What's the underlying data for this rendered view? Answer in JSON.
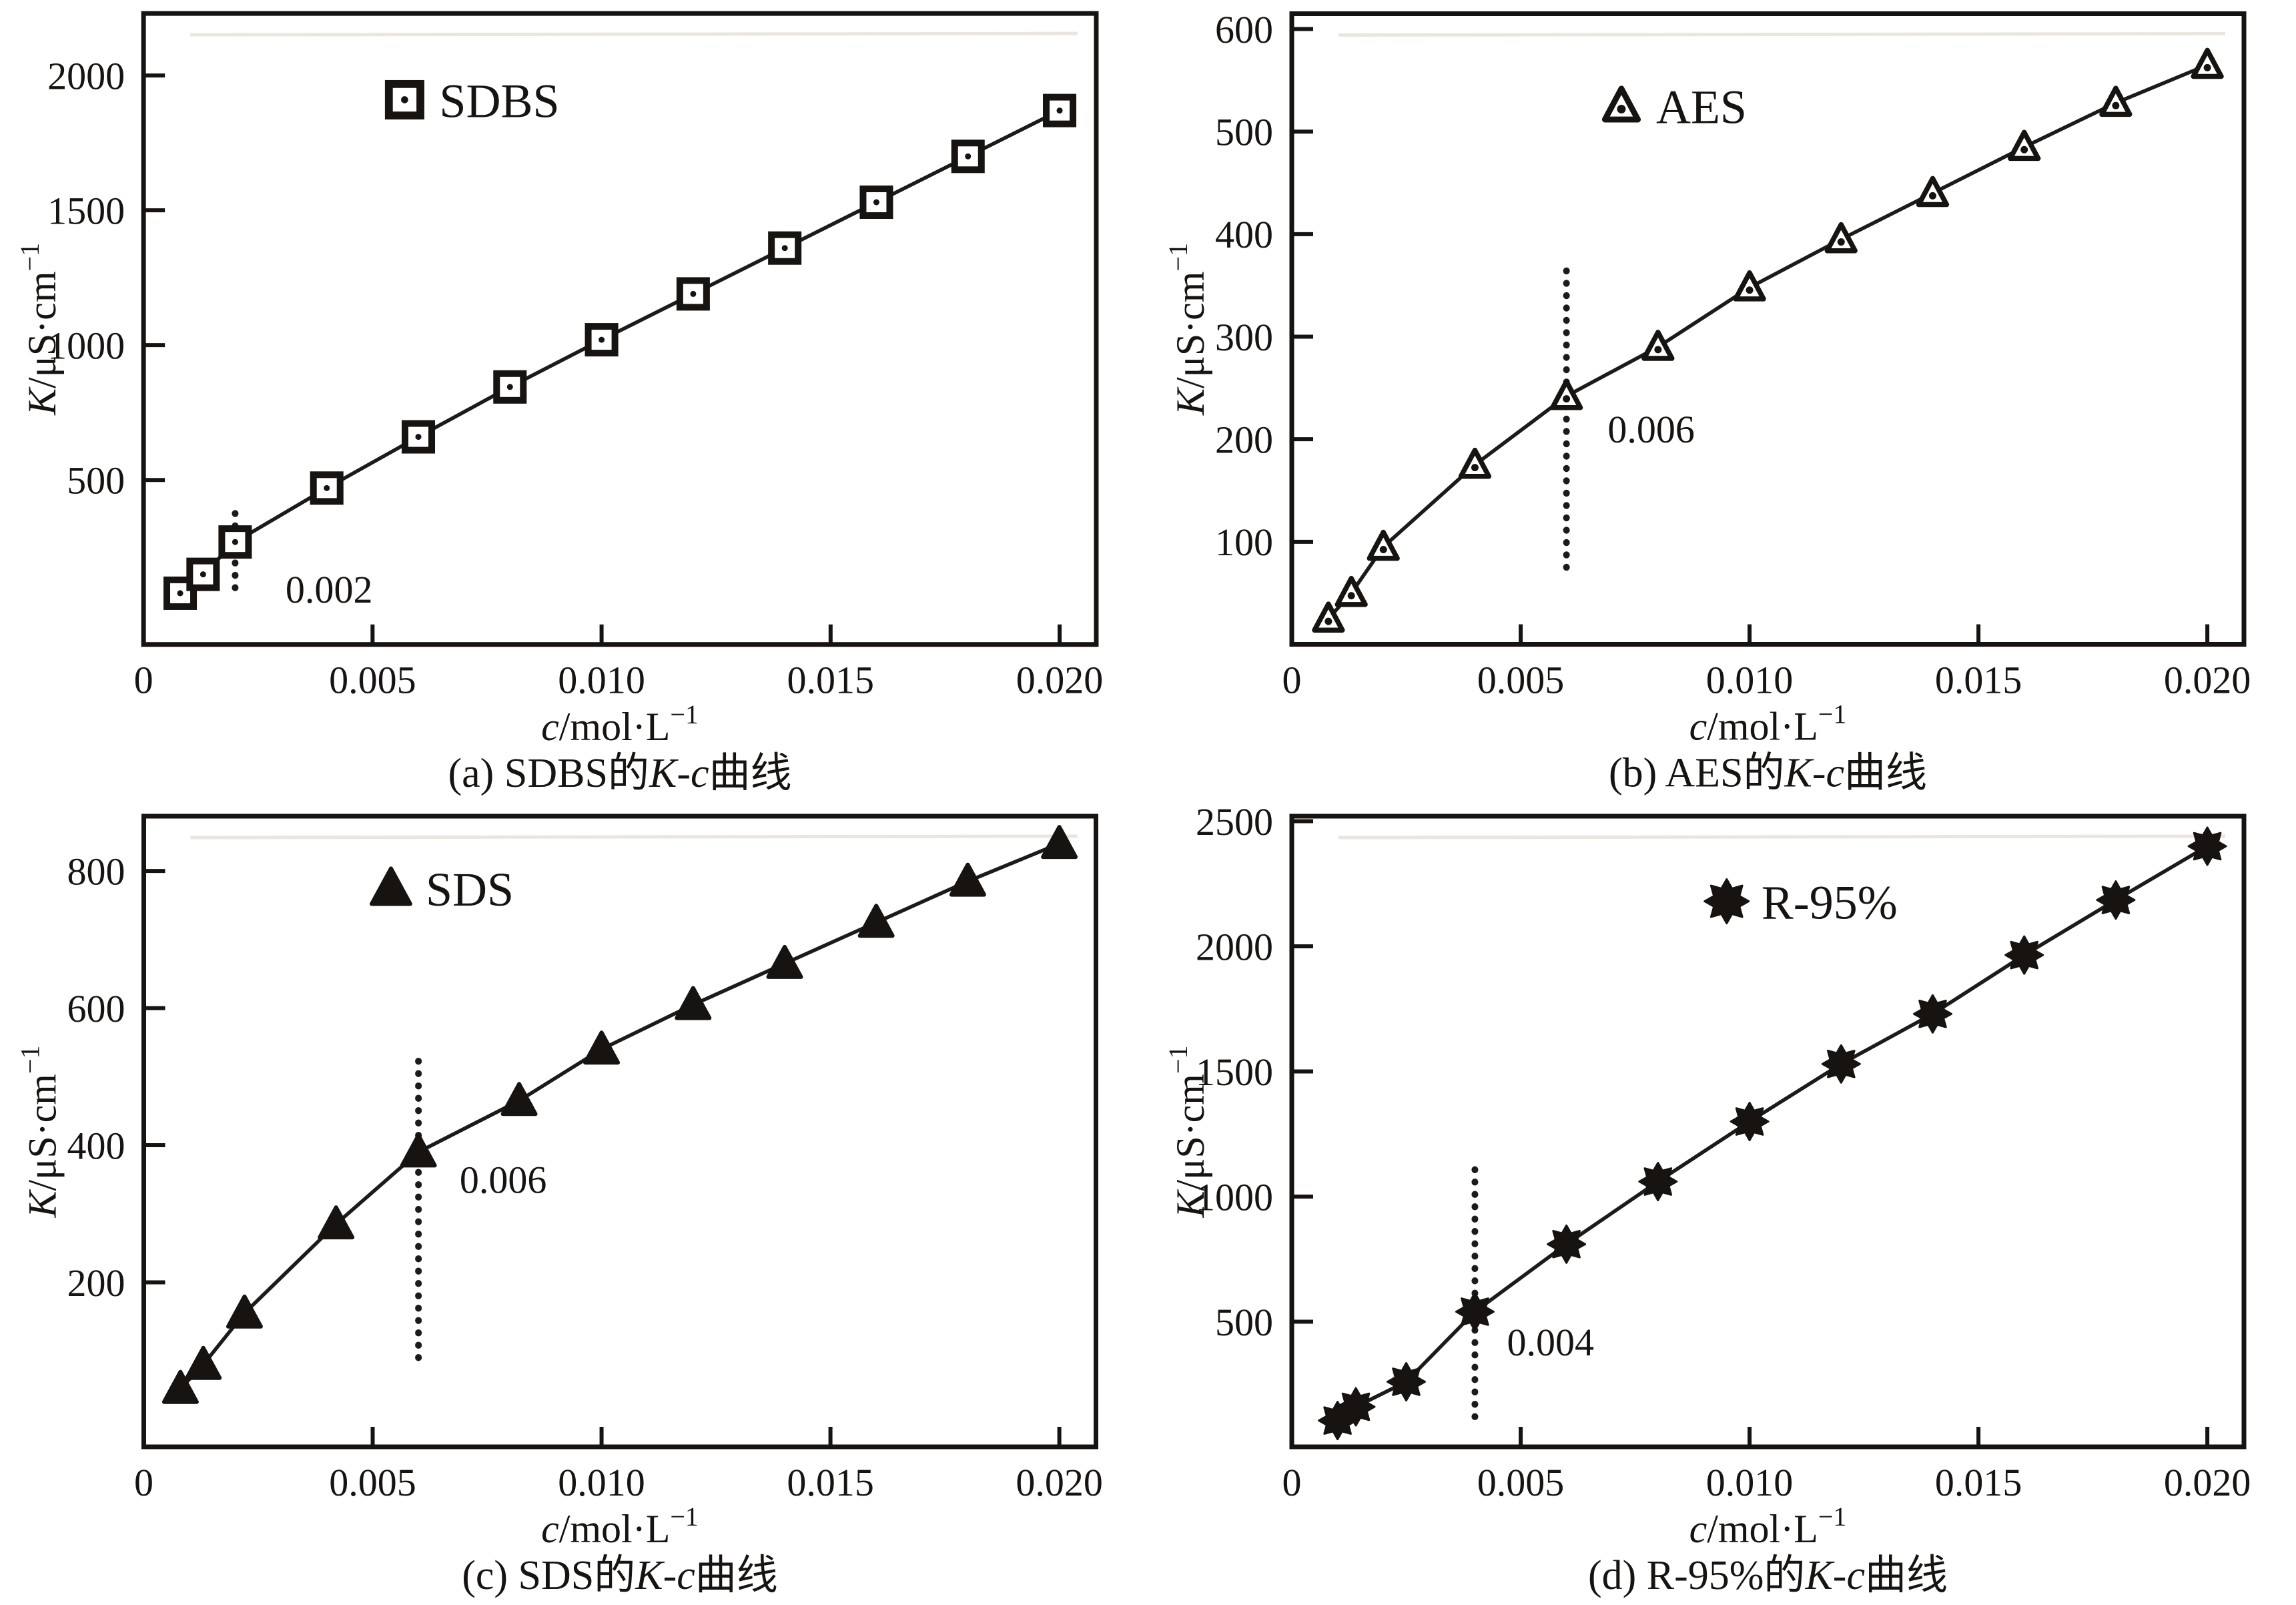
{
  "figure": {
    "background": "#ffffff",
    "ink": "#171310",
    "line_color": "#1b1b1b",
    "artifact_line_color": "#eae6df",
    "xlabel_text": "c/mol·L−1",
    "ylabel_text": "K/μS·cm−1",
    "xlabel_parts": [
      {
        "t": "c",
        "i": true
      },
      {
        "t": "/mol·L",
        "i": false
      },
      {
        "t": "−1",
        "sup": true
      }
    ],
    "ylabel_parts": [
      {
        "t": "K",
        "i": true
      },
      {
        "t": "/μS·cm",
        "i": false
      },
      {
        "t": "−1",
        "sup": true
      }
    ]
  },
  "chart_data": [
    {
      "id": "a",
      "type": "line",
      "series_label": "SDBS",
      "marker": "open-square",
      "x": [
        0.0008,
        0.0013,
        0.002,
        0.004,
        0.006,
        0.008,
        0.01,
        0.012,
        0.014,
        0.016,
        0.018,
        0.02
      ],
      "y": [
        80,
        150,
        270,
        470,
        660,
        845,
        1020,
        1190,
        1360,
        1530,
        1700,
        1870
      ],
      "xlim": [
        0,
        0.0208
      ],
      "ylim": [
        -110,
        2230
      ],
      "xticks": [
        {
          "v": 0,
          "label": "0"
        },
        {
          "v": 0.005,
          "label": "0.005"
        },
        {
          "v": 0.01,
          "label": "0.010"
        },
        {
          "v": 0.015,
          "label": "0.015"
        },
        {
          "v": 0.02,
          "label": "0.020"
        }
      ],
      "yticks": [
        {
          "v": 500,
          "label": "500"
        },
        {
          "v": 1000,
          "label": "1000"
        },
        {
          "v": 1500,
          "label": "1500"
        },
        {
          "v": 2000,
          "label": "2000"
        }
      ],
      "legend": {
        "label": "SDBS",
        "x": 0.0057,
        "y": 1910
      },
      "cmc_annotation": {
        "x": 0.002,
        "label": "0.002",
        "line_y": [
          100,
          420
        ],
        "label_pos": [
          0.0031,
          95
        ]
      },
      "caption_text": "(a) SDBS的K-c曲线",
      "caption_parts": [
        {
          "t": "(a) SDBS的",
          "i": false
        },
        {
          "t": "K",
          "i": true
        },
        {
          "t": "-",
          "i": false
        },
        {
          "t": "c",
          "i": true
        },
        {
          "t": "曲线",
          "i": false
        }
      ]
    },
    {
      "id": "b",
      "type": "line",
      "series_label": "AES",
      "marker": "dot-triangle",
      "x": [
        0.0008,
        0.0013,
        0.002,
        0.004,
        0.006,
        0.008,
        0.01,
        0.012,
        0.014,
        0.016,
        0.018,
        0.02
      ],
      "y": [
        25,
        50,
        95,
        175,
        242,
        290,
        348,
        395,
        440,
        485,
        528,
        565
      ],
      "xlim": [
        0,
        0.0208
      ],
      "ylim": [
        0,
        615
      ],
      "xticks": [
        {
          "v": 0,
          "label": "0"
        },
        {
          "v": 0.005,
          "label": "0.005"
        },
        {
          "v": 0.01,
          "label": "0.010"
        },
        {
          "v": 0.015,
          "label": "0.015"
        },
        {
          "v": 0.02,
          "label": "0.020"
        }
      ],
      "yticks": [
        {
          "v": 100,
          "label": "100"
        },
        {
          "v": 200,
          "label": "200"
        },
        {
          "v": 300,
          "label": "300"
        },
        {
          "v": 400,
          "label": "400"
        },
        {
          "v": 500,
          "label": "500"
        },
        {
          "v": 600,
          "label": "600"
        }
      ],
      "legend": {
        "label": "AES",
        "x": 0.0072,
        "y": 525
      },
      "cmc_annotation": {
        "x": 0.006,
        "label": "0.006",
        "line_y": [
          75,
          375
        ],
        "label_pos": [
          0.0069,
          210
        ]
      },
      "caption_text": "(b) AES的K-c曲线",
      "caption_parts": [
        {
          "t": "(b) AES的",
          "i": false
        },
        {
          "t": "K",
          "i": true
        },
        {
          "t": "-",
          "i": false
        },
        {
          "t": "c",
          "i": true
        },
        {
          "t": "曲线",
          "i": false
        }
      ]
    },
    {
      "id": "c",
      "type": "line",
      "series_label": "SDS",
      "marker": "filled-triangle",
      "x": [
        0.0008,
        0.0013,
        0.0022,
        0.0042,
        0.006,
        0.0082,
        0.01,
        0.012,
        0.014,
        0.016,
        0.018,
        0.02
      ],
      "y": [
        45,
        80,
        155,
        285,
        390,
        465,
        540,
        605,
        665,
        725,
        785,
        840
      ],
      "xlim": [
        0,
        0.0208
      ],
      "ylim": [
        -40,
        880
      ],
      "xticks": [
        {
          "v": 0,
          "label": "0"
        },
        {
          "v": 0.005,
          "label": "0.005"
        },
        {
          "v": 0.01,
          "label": "0.010"
        },
        {
          "v": 0.015,
          "label": "0.015"
        },
        {
          "v": 0.02,
          "label": "0.020"
        }
      ],
      "yticks": [
        {
          "v": 200,
          "label": "200"
        },
        {
          "v": 400,
          "label": "400"
        },
        {
          "v": 600,
          "label": "600"
        },
        {
          "v": 800,
          "label": "800"
        }
      ],
      "legend": {
        "label": "SDS",
        "x": 0.0054,
        "y": 775
      },
      "cmc_annotation": {
        "x": 0.006,
        "label": "0.006",
        "line_y": [
          90,
          540
        ],
        "label_pos": [
          0.0069,
          350
        ]
      },
      "caption_text": "(c) SDS的K-c曲线",
      "caption_parts": [
        {
          "t": "(c) SDS的",
          "i": false
        },
        {
          "t": "K",
          "i": true
        },
        {
          "t": "-",
          "i": false
        },
        {
          "t": "c",
          "i": true
        },
        {
          "t": "曲线",
          "i": false
        }
      ]
    },
    {
      "id": "d",
      "type": "line",
      "series_label": "R-95%",
      "marker": "octagram",
      "x": [
        0.001,
        0.0014,
        0.0025,
        0.004,
        0.006,
        0.008,
        0.01,
        0.012,
        0.014,
        0.016,
        0.018,
        0.02
      ],
      "y": [
        105,
        160,
        260,
        540,
        810,
        1060,
        1300,
        1530,
        1730,
        1965,
        2185,
        2400
      ],
      "xlim": [
        0,
        0.0208
      ],
      "ylim": [
        0,
        2520
      ],
      "xticks": [
        {
          "v": 0,
          "label": "0"
        },
        {
          "v": 0.005,
          "label": "0.005"
        },
        {
          "v": 0.01,
          "label": "0.010"
        },
        {
          "v": 0.015,
          "label": "0.015"
        },
        {
          "v": 0.02,
          "label": "0.020"
        }
      ],
      "yticks": [
        {
          "v": 500,
          "label": "500"
        },
        {
          "v": 1000,
          "label": "1000"
        },
        {
          "v": 1500,
          "label": "1500"
        },
        {
          "v": 2000,
          "label": "2000"
        },
        {
          "v": 2500,
          "label": "2500"
        }
      ],
      "legend": {
        "label": "R-95%",
        "x": 0.0095,
        "y": 2180
      },
      "cmc_annotation": {
        "x": 0.004,
        "label": "0.004",
        "line_y": [
          120,
          1140
        ],
        "label_pos": [
          0.0047,
          420
        ]
      },
      "caption_text": "(d) R-95%的K-c曲线",
      "caption_parts": [
        {
          "t": "(d) R-95%的",
          "i": false
        },
        {
          "t": "K",
          "i": true
        },
        {
          "t": "-",
          "i": false
        },
        {
          "t": "c",
          "i": true
        },
        {
          "t": "曲线",
          "i": false
        }
      ]
    }
  ]
}
